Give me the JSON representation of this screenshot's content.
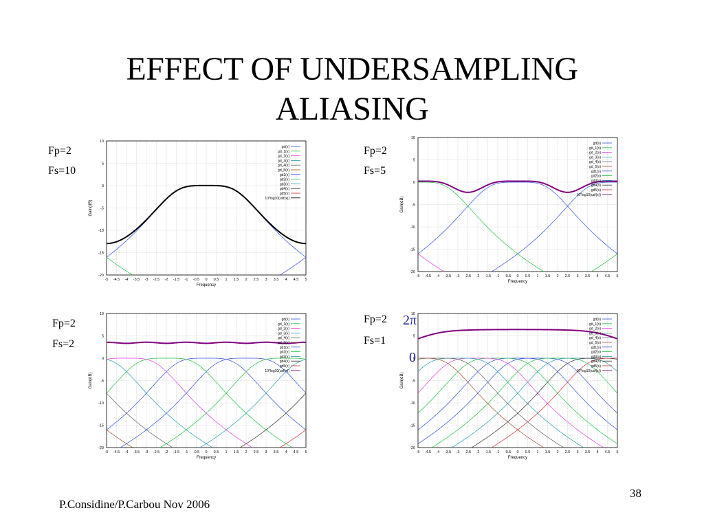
{
  "slide": {
    "title_line1": "EFFECT OF UNDERSAMPLING",
    "title_line2": "ALIASING",
    "footer": "P.Considine/P.Carbou Nov 2006",
    "page_number": "38"
  },
  "panel_labels": [
    {
      "fp": "Fp=2",
      "fs": "Fs=10"
    },
    {
      "fp": "Fp=2",
      "fs": "Fs=5"
    },
    {
      "fp": "Fp=2",
      "fs": "Fs=2"
    },
    {
      "fp": "Fp=2",
      "fs": "Fs=1"
    }
  ],
  "annotations": {
    "two_pi": "2π",
    "zero": "0"
  },
  "chart_data": [
    {
      "type": "line",
      "title": "",
      "xlabel": "Frequency",
      "ylabel": "Gain(dB)",
      "xlim": [
        -5,
        5
      ],
      "ylim": [
        -20,
        10
      ],
      "xticks": [
        -5,
        -4.5,
        -4,
        -3.5,
        -3,
        -2.5,
        -2,
        -1.5,
        -1,
        -0.5,
        0,
        0.5,
        1,
        1.5,
        2,
        2.5,
        3,
        3.5,
        4,
        4.5,
        5
      ],
      "yticks": [
        10,
        5,
        0,
        -5,
        -10,
        -15,
        -20
      ],
      "grid": true,
      "legend_position": "top-right",
      "fp": 2,
      "fs": 10,
      "series": [
        {
          "name": "gd(x)",
          "color": "#3050e0",
          "shift": 0
        },
        {
          "name": "gd_1(x)",
          "color": "#20c040",
          "shift": -10
        },
        {
          "name": "gd_2(x)",
          "color": "#e040e0",
          "shift": -20
        },
        {
          "name": "gd_3(x)",
          "color": "#2a9ab0",
          "shift": -30
        },
        {
          "name": "gd_4(x)",
          "color": "#606060",
          "shift": -40
        },
        {
          "name": "gd_5(x)",
          "color": "#a05030",
          "shift": -50
        },
        {
          "name": "gd1(x)",
          "color": "#3050e0",
          "shift": 10
        },
        {
          "name": "gd2(x)",
          "color": "#20c040",
          "shift": 20
        },
        {
          "name": "gd3(x)",
          "color": "#2a9ab0",
          "shift": 30
        },
        {
          "name": "gd4(x)",
          "color": "#303030",
          "shift": 40
        },
        {
          "name": "gd5(x)",
          "color": "#d03030",
          "shift": 50
        },
        {
          "name": "10*log10(usf(x))",
          "color": "#000000",
          "total": true
        }
      ]
    },
    {
      "type": "line",
      "title": "",
      "xlabel": "Frequency",
      "ylabel": "Gain(dB)",
      "xlim": [
        -5,
        5
      ],
      "ylim": [
        -20,
        10
      ],
      "xticks": [
        -5,
        -4.5,
        -4,
        -3.5,
        -3,
        -2.5,
        -2,
        -1.5,
        -1,
        -0.5,
        0,
        0.5,
        1,
        1.5,
        2,
        2.5,
        3,
        3.5,
        4,
        4.5,
        5
      ],
      "yticks": [
        10,
        5,
        0,
        -5,
        -10,
        -15,
        -20
      ],
      "grid": true,
      "legend_position": "top-right",
      "fp": 2,
      "fs": 5,
      "series": [
        {
          "name": "gd(x)",
          "color": "#3050e0",
          "shift": 0
        },
        {
          "name": "gd_1(x)",
          "color": "#20c040",
          "shift": -5
        },
        {
          "name": "gd_2(x)",
          "color": "#e040e0",
          "shift": -10
        },
        {
          "name": "gd_3(x)",
          "color": "#2a9ab0",
          "shift": -15
        },
        {
          "name": "gd_4(x)",
          "color": "#606060",
          "shift": -20
        },
        {
          "name": "gd_5(x)",
          "color": "#a05030",
          "shift": -25
        },
        {
          "name": "gd1(x)",
          "color": "#3050e0",
          "shift": 5
        },
        {
          "name": "gd2(x)",
          "color": "#20c040",
          "shift": 10
        },
        {
          "name": "gd3(x)",
          "color": "#2a9ab0",
          "shift": 15
        },
        {
          "name": "gd4(x)",
          "color": "#303030",
          "shift": 20
        },
        {
          "name": "gd5(x)",
          "color": "#d03030",
          "shift": 25
        },
        {
          "name": "10*log10(usf(x))",
          "color": "#800080",
          "total": true
        }
      ]
    },
    {
      "type": "line",
      "title": "",
      "xlabel": "Frequency",
      "ylabel": "Gain(dB)",
      "xlim": [
        -5,
        5
      ],
      "ylim": [
        -20,
        10
      ],
      "xticks": [
        -5,
        -4.5,
        -4,
        -3.5,
        -3,
        -2.5,
        -2,
        -1.5,
        -1,
        -0.5,
        0,
        0.5,
        1,
        1.5,
        2,
        2.5,
        3,
        3.5,
        4,
        4.5,
        5
      ],
      "yticks": [
        10,
        5,
        0,
        -5,
        -10,
        -15,
        -20
      ],
      "grid": true,
      "legend_position": "top-right",
      "fp": 2,
      "fs": 2,
      "series": [
        {
          "name": "gd(x)",
          "color": "#3050e0",
          "shift": 0
        },
        {
          "name": "gd_1(x)",
          "color": "#20c040",
          "shift": -2
        },
        {
          "name": "gd_2(x)",
          "color": "#e040e0",
          "shift": -4
        },
        {
          "name": "gd_3(x)",
          "color": "#2a9ab0",
          "shift": -6
        },
        {
          "name": "gd_4(x)",
          "color": "#606060",
          "shift": -8
        },
        {
          "name": "gd_5(x)",
          "color": "#a05030",
          "shift": -10
        },
        {
          "name": "gd1(x)",
          "color": "#3050e0",
          "shift": 2
        },
        {
          "name": "gd2(x)",
          "color": "#20c040",
          "shift": 4
        },
        {
          "name": "gd3(x)",
          "color": "#2a9ab0",
          "shift": 6
        },
        {
          "name": "gd4(x)",
          "color": "#303030",
          "shift": 8
        },
        {
          "name": "gd5(x)",
          "color": "#d03030",
          "shift": 10
        },
        {
          "name": "10*log10(usf(x))",
          "color": "#800080",
          "total": true
        }
      ]
    },
    {
      "type": "line",
      "title": "",
      "xlabel": "Frequency",
      "ylabel": "Gain(dB)",
      "xlim": [
        -5,
        5
      ],
      "ylim": [
        -20,
        10
      ],
      "xticks": [
        -5,
        -4.5,
        -4,
        -3.5,
        -3,
        -2.5,
        -2,
        -1.5,
        -1,
        -0.5,
        0,
        0.5,
        1,
        1.5,
        2,
        2.5,
        3,
        3.5,
        4,
        4.5,
        5
      ],
      "yticks": [
        10,
        5,
        0,
        -5,
        -10,
        -15,
        -20
      ],
      "grid": true,
      "legend_position": "top-right",
      "fp": 2,
      "fs": 1,
      "series": [
        {
          "name": "gd(x)",
          "color": "#3050e0",
          "shift": 0
        },
        {
          "name": "gd_1(x)",
          "color": "#20c040",
          "shift": -1
        },
        {
          "name": "gd_2(x)",
          "color": "#e040e0",
          "shift": -2
        },
        {
          "name": "gd_3(x)",
          "color": "#2a9ab0",
          "shift": -3
        },
        {
          "name": "gd_4(x)",
          "color": "#606060",
          "shift": -4
        },
        {
          "name": "gd_5(x)",
          "color": "#a05030",
          "shift": -5
        },
        {
          "name": "gd1(x)",
          "color": "#3050e0",
          "shift": 1
        },
        {
          "name": "gd2(x)",
          "color": "#20c040",
          "shift": 2
        },
        {
          "name": "gd3(x)",
          "color": "#2a9ab0",
          "shift": 3
        },
        {
          "name": "gd4(x)",
          "color": "#303030",
          "shift": 4
        },
        {
          "name": "gd5(x)",
          "color": "#d03030",
          "shift": 5
        },
        {
          "name": "10*log10(usf(x))",
          "color": "#800080",
          "total": true
        }
      ]
    }
  ]
}
